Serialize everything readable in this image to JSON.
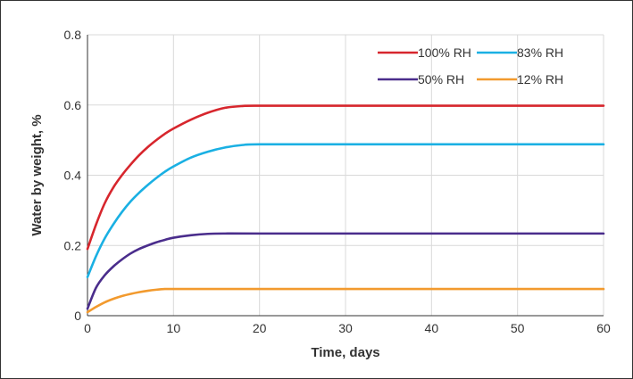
{
  "chart_data": {
    "type": "line",
    "title": "",
    "xlabel": "Time, days",
    "ylabel": "Water by weight, %",
    "xlim": [
      0,
      60
    ],
    "ylim": [
      0,
      0.8
    ],
    "x_ticks": [
      "0",
      "10",
      "20",
      "30",
      "40",
      "50",
      "60"
    ],
    "y_ticks": [
      "0",
      "0.2",
      "0.4",
      "0.6",
      "0.8"
    ],
    "grid": true,
    "legend_position": "top-right",
    "series": [
      {
        "name": "100% RH",
        "color": "#d7262d",
        "x": [
          0,
          1,
          2,
          3,
          4,
          5,
          6,
          7,
          8,
          9,
          10,
          12,
          14,
          16,
          18,
          20,
          30,
          40,
          50,
          60
        ],
        "y": [
          0.19,
          0.26,
          0.32,
          0.365,
          0.4,
          0.43,
          0.457,
          0.48,
          0.5,
          0.518,
          0.533,
          0.558,
          0.578,
          0.592,
          0.597,
          0.598,
          0.598,
          0.598,
          0.598,
          0.598
        ]
      },
      {
        "name": "83% RH",
        "color": "#1ab0e3",
        "x": [
          0,
          1,
          2,
          3,
          4,
          5,
          6,
          7,
          8,
          9,
          10,
          12,
          14,
          16,
          18,
          20,
          30,
          40,
          50,
          60
        ],
        "y": [
          0.11,
          0.17,
          0.22,
          0.26,
          0.295,
          0.325,
          0.35,
          0.372,
          0.392,
          0.41,
          0.425,
          0.45,
          0.467,
          0.479,
          0.486,
          0.488,
          0.488,
          0.488,
          0.488,
          0.488
        ]
      },
      {
        "name": "50% RH",
        "color": "#4a2d8c",
        "x": [
          0,
          1,
          2,
          3,
          4,
          5,
          6,
          7,
          8,
          9,
          10,
          12,
          14,
          16,
          20,
          30,
          40,
          50,
          60
        ],
        "y": [
          0.02,
          0.08,
          0.115,
          0.14,
          0.16,
          0.177,
          0.19,
          0.2,
          0.209,
          0.216,
          0.222,
          0.229,
          0.233,
          0.234,
          0.234,
          0.234,
          0.234,
          0.234,
          0.234
        ]
      },
      {
        "name": "12% RH",
        "color": "#f29a2e",
        "x": [
          0,
          1,
          2,
          3,
          4,
          5,
          6,
          7,
          8,
          9,
          10,
          20,
          30,
          40,
          50,
          60
        ],
        "y": [
          0.01,
          0.025,
          0.038,
          0.048,
          0.056,
          0.062,
          0.067,
          0.071,
          0.074,
          0.076,
          0.076,
          0.076,
          0.076,
          0.076,
          0.076,
          0.076
        ]
      }
    ]
  }
}
